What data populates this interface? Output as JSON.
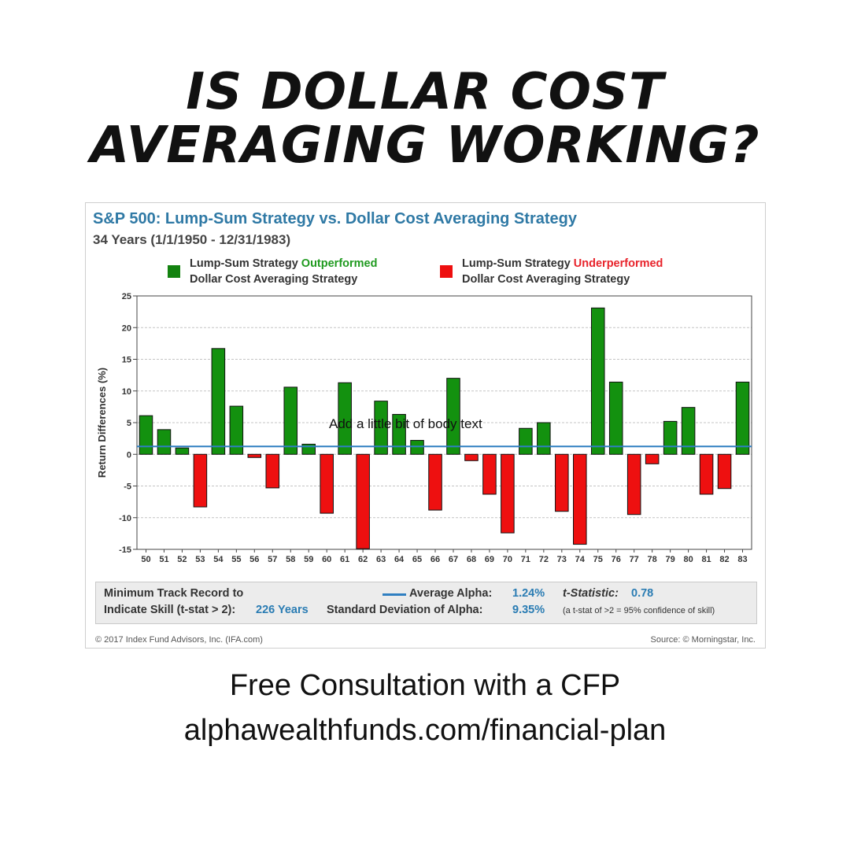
{
  "headline": {
    "line1": "IS DOLLAR COST",
    "line2": "AVERAGING WORKING?"
  },
  "chart_data": {
    "type": "bar",
    "title": "S&P 500: Lump-Sum Strategy vs. Dollar Cost Averaging Strategy",
    "subtitle": "34 Years (1/1/1950 - 12/31/1983)",
    "ylabel": "Return Differences (%)",
    "xlabel": "",
    "ylim": [
      -15,
      25
    ],
    "yticks": [
      25,
      20,
      15,
      10,
      5,
      0,
      -5,
      -10,
      -15
    ],
    "grid": true,
    "categories": [
      "50",
      "51",
      "52",
      "53",
      "54",
      "55",
      "56",
      "57",
      "58",
      "59",
      "60",
      "61",
      "62",
      "63",
      "64",
      "65",
      "66",
      "67",
      "68",
      "69",
      "70",
      "71",
      "72",
      "73",
      "74",
      "75",
      "76",
      "77",
      "78",
      "79",
      "80",
      "81",
      "82",
      "83"
    ],
    "values": [
      6.1,
      3.9,
      1.0,
      -8.3,
      16.7,
      7.6,
      -0.5,
      -5.3,
      10.6,
      1.6,
      -9.3,
      11.3,
      -14.9,
      8.4,
      6.3,
      2.2,
      -8.8,
      12.0,
      -1.0,
      -6.3,
      -12.4,
      4.1,
      5.0,
      -9.0,
      -14.2,
      23.1,
      11.4,
      -9.5,
      -1.5,
      5.2,
      7.4,
      -6.3,
      -5.4,
      11.4
    ],
    "reference_line": {
      "label": "Average Alpha",
      "value": 1.24
    },
    "legend": [
      {
        "line1_prefix": "Lump-Sum Strategy ",
        "line1_highlight": "Outperformed",
        "line2": "Dollar Cost Averaging Strategy",
        "color": "#13820f"
      },
      {
        "line1_prefix": "Lump-Sum Strategy ",
        "line1_highlight": "Underperformed",
        "line2": "Dollar Cost Averaging Strategy",
        "color": "#ee0f0f"
      }
    ],
    "colors": {
      "positive": "#13910f",
      "negative": "#ee1010",
      "average_line": "#2f7fc1"
    }
  },
  "stats": {
    "min_track_label1": "Minimum Track Record to",
    "min_track_label2": "Indicate Skill (t-stat > 2):",
    "min_track_value": "226 Years",
    "avg_alpha_label": "Average Alpha:",
    "avg_alpha_value": "1.24%",
    "sd_alpha_label": "Standard Deviation of Alpha:",
    "sd_alpha_value": "9.35%",
    "tstat_label": "t-Statistic:",
    "tstat_value": "0.78",
    "tstat_note": "(a t-stat of >2 = 95% confidence of skill)"
  },
  "footer": {
    "copyright": "© 2017 Index Fund Advisors, Inc. (IFA.com)",
    "source": "Source: © Morningstar, Inc."
  },
  "overlay_text": "Add a little bit of body text",
  "cta": {
    "line1": "Free Consultation with a CFP",
    "line2": "alphawealthfunds.com/financial-plan"
  }
}
